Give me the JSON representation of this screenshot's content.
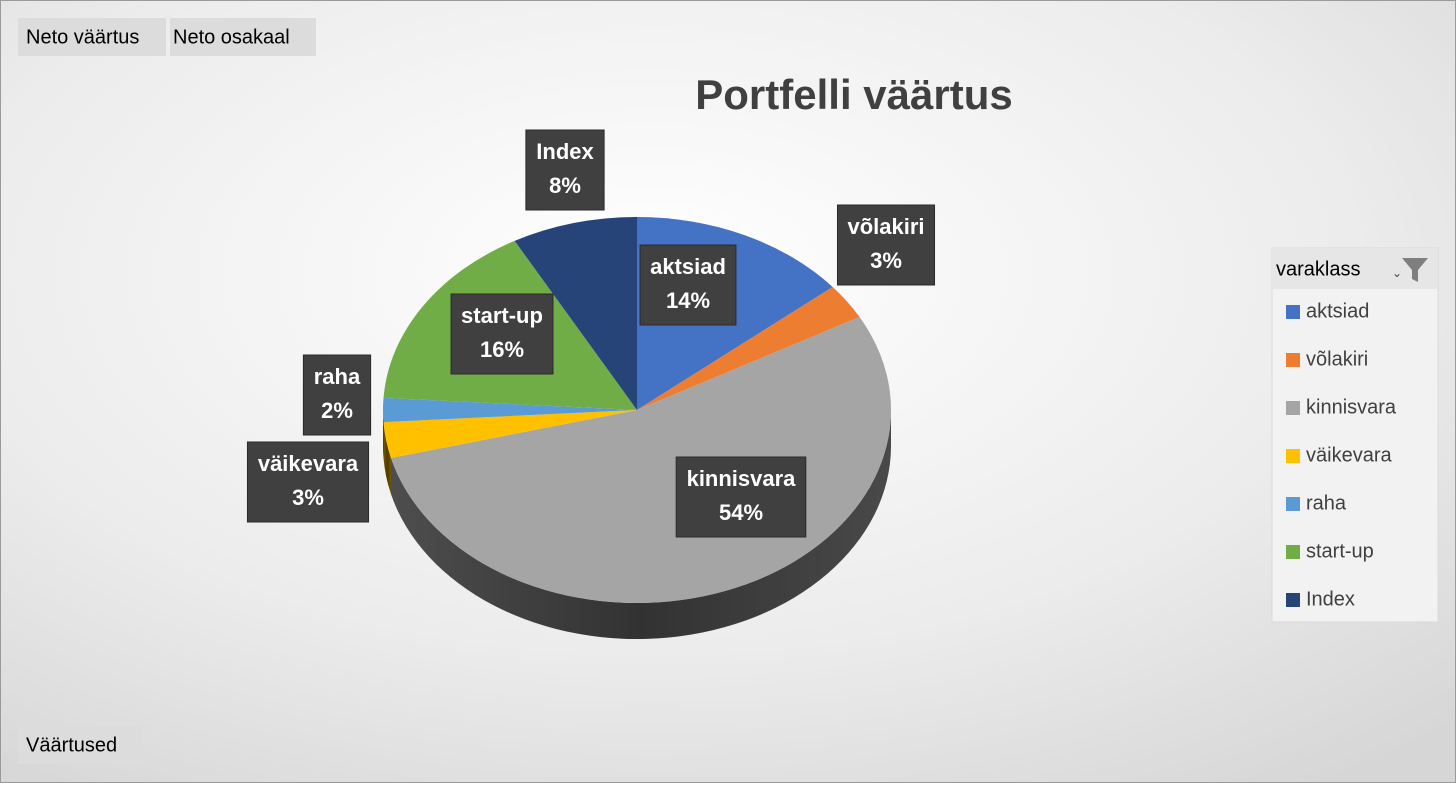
{
  "chart_data": {
    "type": "pie",
    "title": "Portfelli väärtus",
    "field_buttons": [
      "Neto väärtus",
      "Neto osakaal"
    ],
    "values_button": "Väärtused",
    "legend_title": "varaklass",
    "legend": "right",
    "categories": [
      "aktsiad",
      "võlakiri",
      "kinnisvara",
      "väikevara",
      "raha",
      "start-up",
      "Index"
    ],
    "values": [
      14,
      3,
      54,
      3,
      2,
      16,
      8
    ],
    "value_labels": [
      "14%",
      "3%",
      "54%",
      "3%",
      "2%",
      "16%",
      "8%"
    ],
    "colors": [
      "#4472c4",
      "#ed7d31",
      "#a5a5a5",
      "#ffc000",
      "#5b9bd5",
      "#70ad47",
      "#264478"
    ]
  }
}
